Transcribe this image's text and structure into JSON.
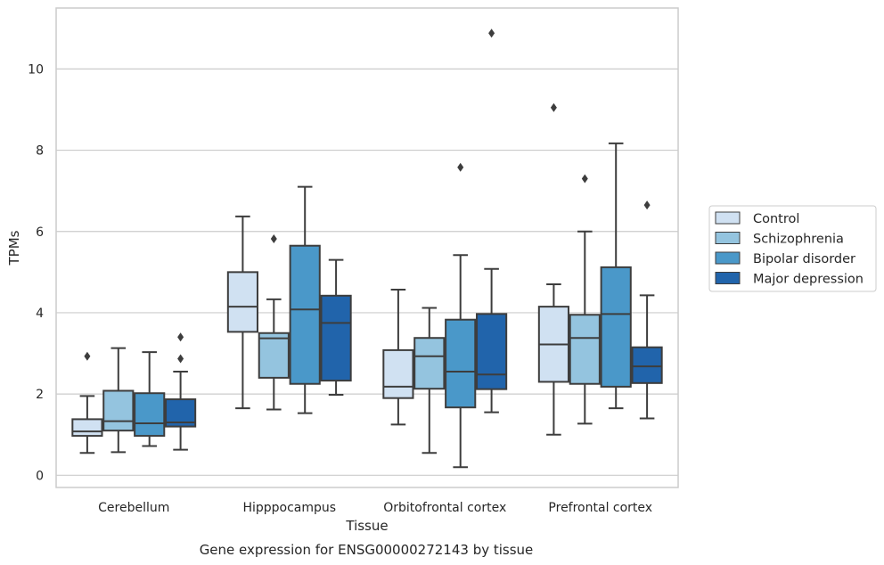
{
  "caption": "Gene expression for ENSG00000272143 by tissue",
  "chart_data": {
    "type": "box",
    "xlabel": "Tissue",
    "ylabel": "TPMs",
    "ylim": [
      -0.3,
      11.5
    ],
    "yticks": [
      0,
      2,
      4,
      6,
      8,
      10
    ],
    "ytick_labels": [
      "0",
      "2",
      "4",
      "6",
      "8",
      "10"
    ],
    "grid": "horizontal",
    "legend_position": "right",
    "categories": [
      "Cerebellum",
      "Hipppocampus",
      "Orbitofrontal cortex",
      "Prefrontal cortex"
    ],
    "series": [
      {
        "name": "Control",
        "color": "#d0e1f2",
        "boxes": [
          {
            "whislo": 0.55,
            "q1": 0.97,
            "med": 1.08,
            "q3": 1.38,
            "whishi": 1.95,
            "fliers": [
              2.93
            ]
          },
          {
            "whislo": 1.65,
            "q1": 3.53,
            "med": 4.15,
            "q3": 5.0,
            "whishi": 6.37,
            "fliers": []
          },
          {
            "whislo": 1.25,
            "q1": 1.9,
            "med": 2.18,
            "q3": 3.08,
            "whishi": 4.57,
            "fliers": []
          },
          {
            "whislo": 1.0,
            "q1": 2.3,
            "med": 3.22,
            "q3": 4.15,
            "whishi": 4.7,
            "fliers": [
              9.05
            ]
          }
        ]
      },
      {
        "name": "Schizophrenia",
        "color": "#94c4df",
        "boxes": [
          {
            "whislo": 0.57,
            "q1": 1.1,
            "med": 1.33,
            "q3": 2.08,
            "whishi": 3.13,
            "fliers": []
          },
          {
            "whislo": 1.62,
            "q1": 2.4,
            "med": 3.37,
            "q3": 3.5,
            "whishi": 4.33,
            "fliers": [
              5.82
            ]
          },
          {
            "whislo": 0.55,
            "q1": 2.13,
            "med": 2.93,
            "q3": 3.38,
            "whishi": 4.12,
            "fliers": []
          },
          {
            "whislo": 1.27,
            "q1": 2.25,
            "med": 3.38,
            "q3": 3.95,
            "whishi": 6.0,
            "fliers": [
              7.3
            ]
          }
        ]
      },
      {
        "name": "Bipolar disorder",
        "color": "#4a98c9",
        "boxes": [
          {
            "whislo": 0.72,
            "q1": 0.97,
            "med": 1.28,
            "q3": 2.02,
            "whishi": 3.03,
            "fliers": []
          },
          {
            "whislo": 1.53,
            "q1": 2.25,
            "med": 4.08,
            "q3": 5.65,
            "whishi": 7.1,
            "fliers": []
          },
          {
            "whislo": 0.2,
            "q1": 1.67,
            "med": 2.55,
            "q3": 3.83,
            "whishi": 5.42,
            "fliers": [
              7.58
            ]
          },
          {
            "whislo": 1.65,
            "q1": 2.18,
            "med": 3.97,
            "q3": 5.12,
            "whishi": 8.17,
            "fliers": []
          }
        ]
      },
      {
        "name": "Major depression",
        "color": "#2164ab",
        "boxes": [
          {
            "whislo": 0.63,
            "q1": 1.2,
            "med": 1.3,
            "q3": 1.87,
            "whishi": 2.55,
            "fliers": [
              2.87,
              3.4
            ]
          },
          {
            "whislo": 1.98,
            "q1": 2.33,
            "med": 3.75,
            "q3": 4.42,
            "whishi": 5.3,
            "fliers": []
          },
          {
            "whislo": 1.55,
            "q1": 2.12,
            "med": 2.48,
            "q3": 3.97,
            "whishi": 5.08,
            "fliers": [
              10.88
            ]
          },
          {
            "whislo": 1.4,
            "q1": 2.27,
            "med": 2.68,
            "q3": 3.15,
            "whishi": 4.43,
            "fliers": [
              6.65
            ]
          }
        ]
      }
    ]
  }
}
